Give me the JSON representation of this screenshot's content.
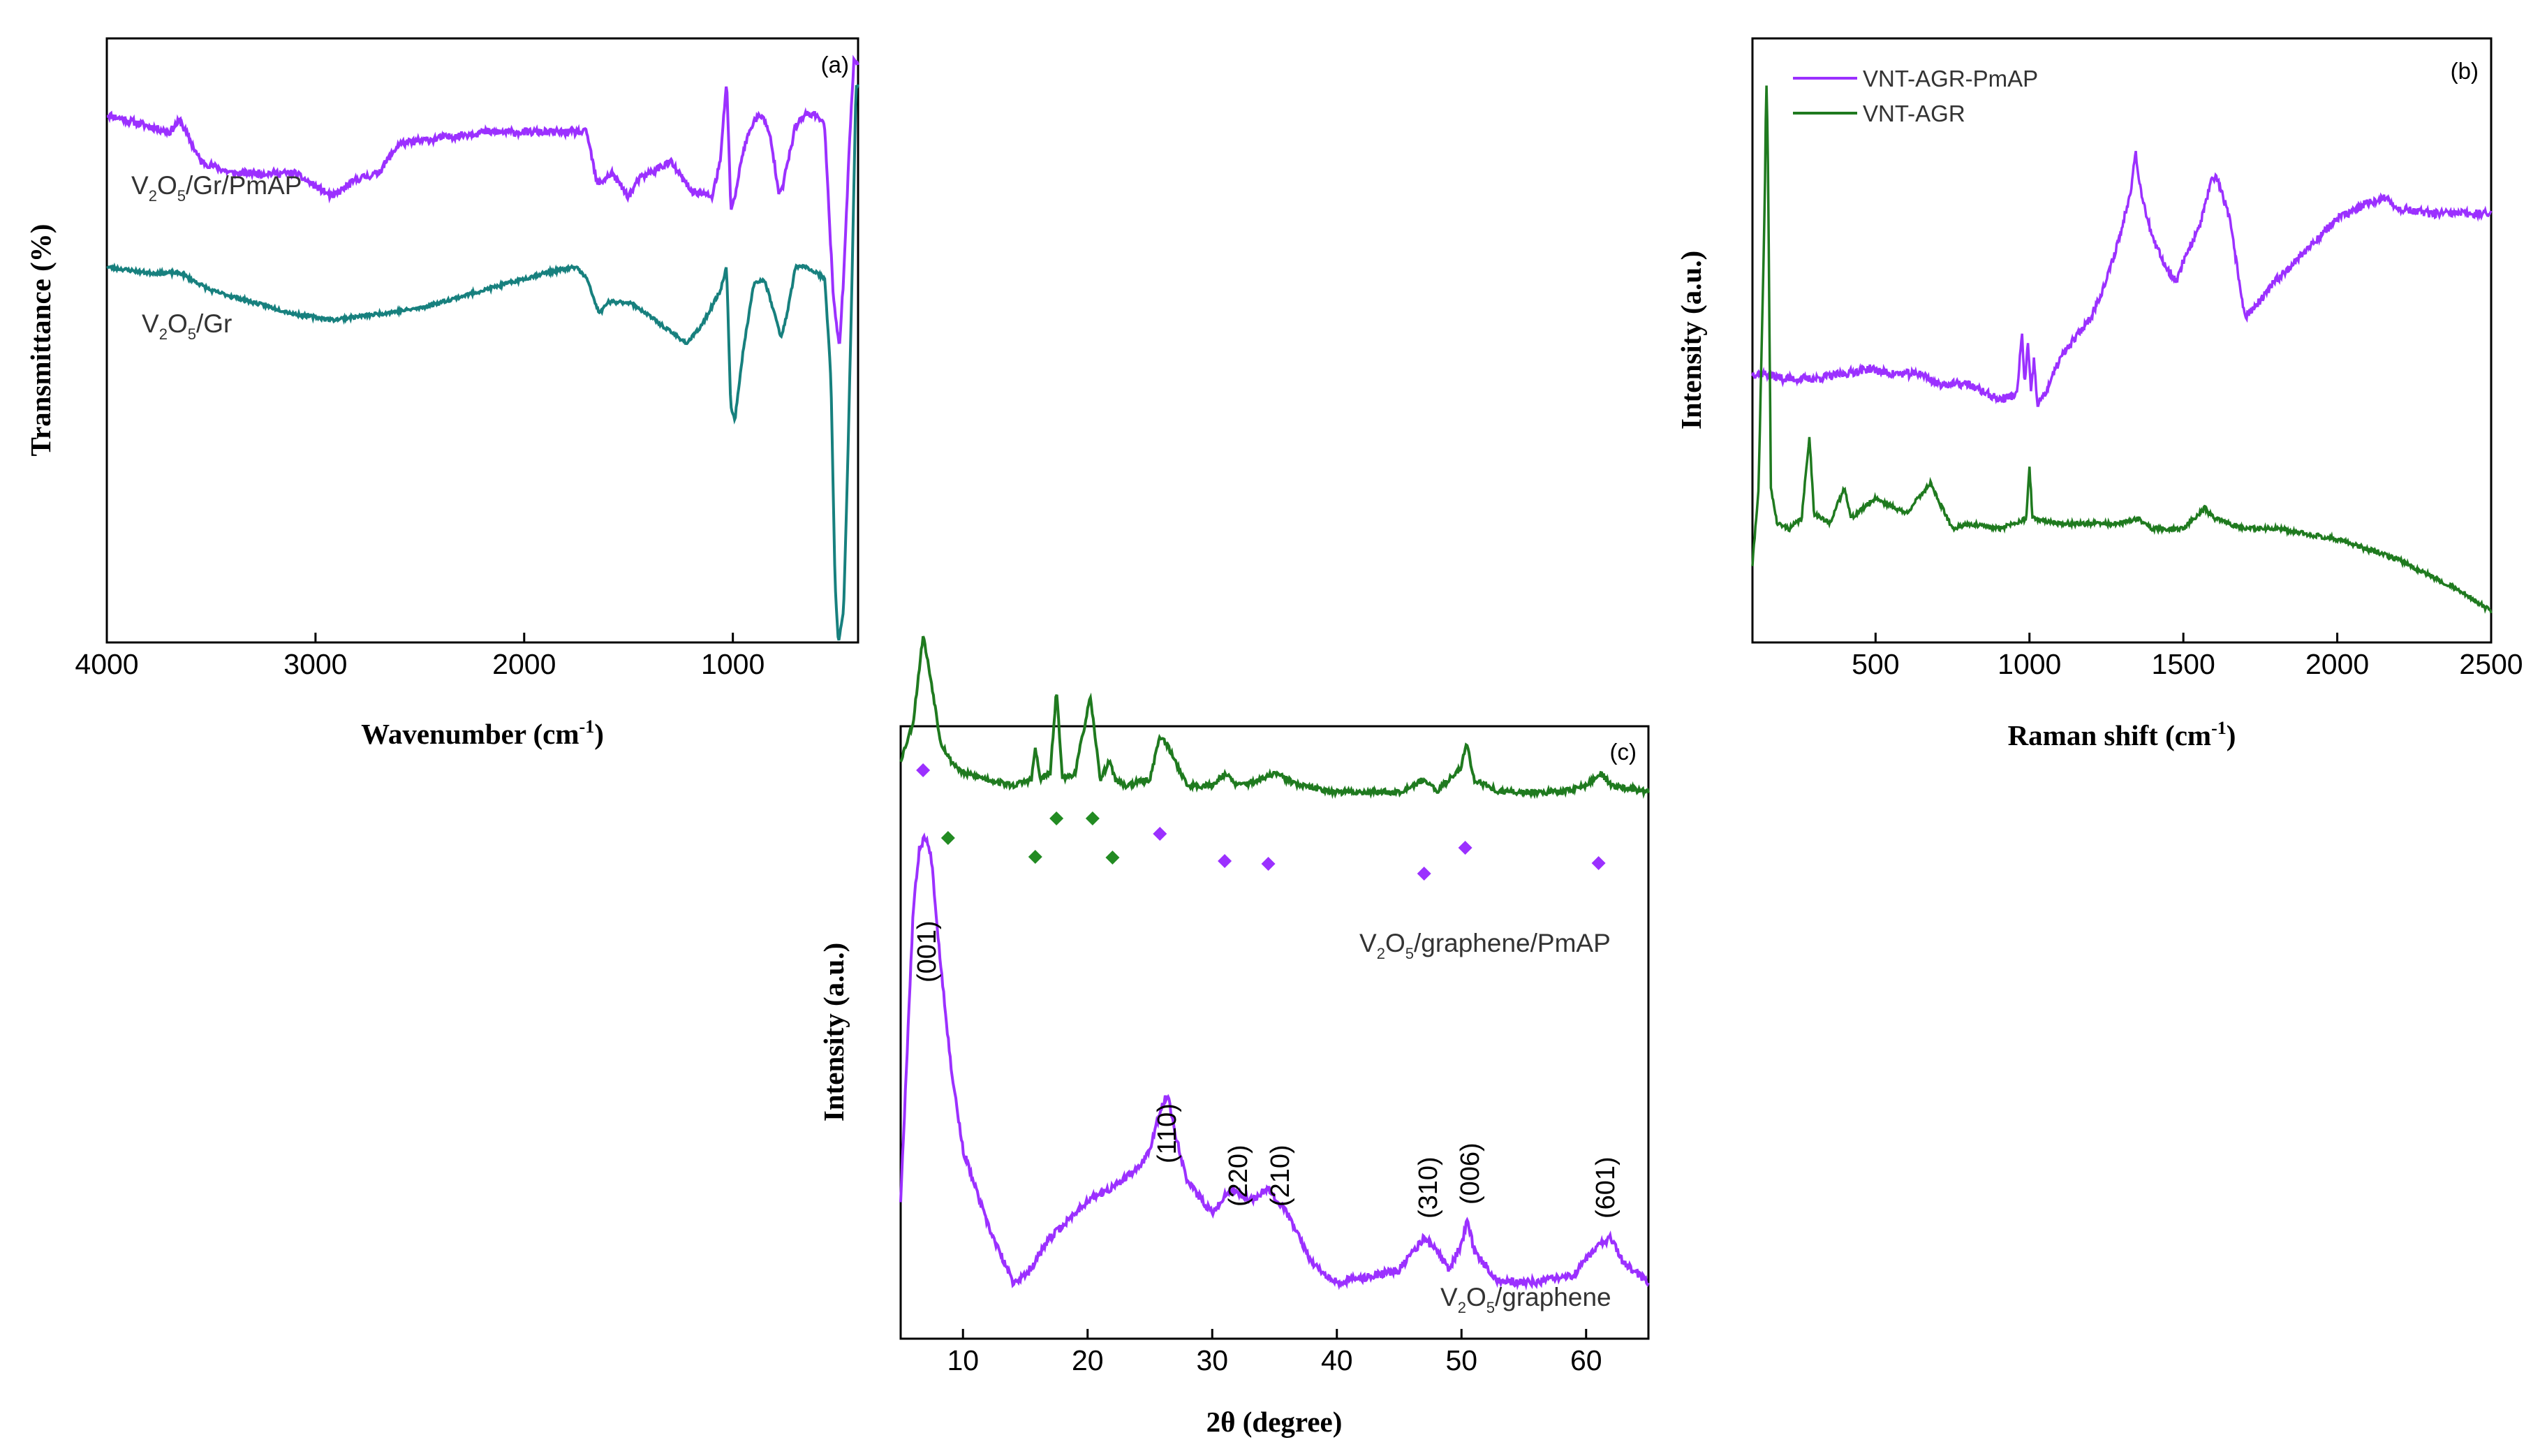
{
  "figure": {
    "panel_a": {
      "label": "(a)",
      "xlabel": "Wavenumber (cm",
      "xlabel_sup": "-1",
      "xlabel_close": ")",
      "ylabel": "Transmittance (%)",
      "xlim": [
        4000,
        400
      ],
      "xticks": [
        "4000",
        "3000",
        "2000",
        "1000"
      ]
    },
    "panel_b": {
      "label": "(b)",
      "xlabel": "Raman shift (cm",
      "xlabel_sup": "-1",
      "xlabel_close": ")",
      "ylabel": "Intensity (a.u.)",
      "xlim": [
        100,
        2500
      ],
      "xticks": [
        "500",
        "1000",
        "1500",
        "2000",
        "2500"
      ],
      "legend": [
        "VNT-AGR-PmAP",
        "VNT-AGR"
      ]
    },
    "panel_c": {
      "label": "(c)",
      "xlabel": "2θ (degree)",
      "ylabel": "Intensity (a.u.)",
      "xlim": [
        5,
        65
      ],
      "xticks": [
        "10",
        "20",
        "30",
        "40",
        "50",
        "60"
      ],
      "hkl": [
        "(001)",
        "(110)",
        "(220)",
        "(210)",
        "(310)",
        "(006)",
        "(601)"
      ]
    }
  },
  "sample_labels": {
    "a_top": [
      "V",
      "2",
      "O",
      "5",
      "/Gr/PmAP"
    ],
    "a_bottom": [
      "V",
      "2",
      "O",
      "5",
      "/Gr"
    ],
    "c_top": [
      "V",
      "2",
      "O",
      "5",
      "/graphene/PmAP"
    ],
    "c_bottom": [
      "V",
      "2",
      "O",
      "5",
      "/graphene"
    ]
  },
  "colors": {
    "purple": "#9b30ff",
    "teal": "#17807e",
    "green": "#1f7a1f",
    "green_marker": "#228b22"
  },
  "chart_data": [
    {
      "type": "line",
      "title": "(a)",
      "xlabel": "Wavenumber (cm-1)",
      "ylabel": "Transmittance (%)",
      "xlim": [
        4000,
        400
      ],
      "series": [
        {
          "name": "V2O5/Gr/PmAP",
          "color": "#9b30ff",
          "x": [
            4000,
            3800,
            3700,
            3650,
            3550,
            3400,
            3100,
            2920,
            2800,
            2700,
            2600,
            2400,
            2200,
            2000,
            1800,
            1700,
            1650,
            1580,
            1500,
            1450,
            1300,
            1200,
            1100,
            1060,
            1030,
            1010,
            990,
            950,
            900,
            860,
            820,
            780,
            760,
            700,
            650,
            600,
            560,
            520,
            490,
            470,
            440,
            420,
            400
          ],
          "y": [
            90,
            88,
            87,
            89,
            82,
            80,
            80,
            76,
            79,
            80,
            85,
            86,
            87,
            87,
            87,
            87,
            78,
            80,
            76,
            79,
            82,
            77,
            76,
            82,
            96,
            74,
            76,
            84,
            89,
            90,
            86,
            77,
            78,
            88,
            90,
            90,
            88,
            60,
            50,
            62,
            86,
            99,
            99
          ]
        },
        {
          "name": "V2O5/Gr",
          "color": "#17807e",
          "x": [
            4000,
            3800,
            3650,
            3500,
            3300,
            3100,
            2920,
            2700,
            2500,
            2300,
            2100,
            1900,
            1750,
            1700,
            1640,
            1600,
            1500,
            1450,
            1300,
            1220,
            1150,
            1060,
            1030,
            1010,
            990,
            950,
            900,
            850,
            800,
            770,
            740,
            700,
            650,
            600,
            560,
            530,
            510,
            495,
            470,
            450,
            430,
            410,
            400
          ],
          "y": [
            64,
            63,
            63,
            60,
            58,
            56,
            55,
            56,
            57,
            59,
            61,
            63,
            64,
            62,
            56,
            58,
            58,
            57,
            53,
            51,
            54,
            60,
            64,
            40,
            38,
            50,
            61,
            62,
            56,
            52,
            56,
            64,
            64,
            63,
            62,
            45,
            10,
            0,
            5,
            30,
            60,
            95,
            95
          ]
        }
      ]
    },
    {
      "type": "line",
      "title": "(b)",
      "xlabel": "Raman shift (cm-1)",
      "ylabel": "Intensity (a.u.)",
      "xlim": [
        100,
        2500
      ],
      "legend": "top-left",
      "series": [
        {
          "name": "VNT-AGR-PmAP",
          "color": "#9b30ff",
          "x": [
            100,
            140,
            200,
            300,
            400,
            480,
            550,
            650,
            700,
            800,
            900,
            960,
            975,
            985,
            995,
            1005,
            1015,
            1025,
            1050,
            1100,
            1200,
            1250,
            1300,
            1330,
            1345,
            1360,
            1400,
            1450,
            1480,
            1500,
            1550,
            1590,
            1610,
            1650,
            1700,
            1750,
            1800,
            1900,
            2000,
            2100,
            2150,
            2200,
            2300,
            2400,
            2500
          ],
          "y": [
            52,
            52,
            51,
            51,
            52,
            53,
            52,
            52,
            50,
            50,
            47,
            48,
            60,
            50,
            58,
            48,
            55,
            46,
            48,
            55,
            63,
            70,
            80,
            88,
            95,
            88,
            78,
            72,
            70,
            74,
            80,
            89,
            90,
            82,
            63,
            66,
            70,
            76,
            82,
            85,
            86,
            84,
            83,
            83,
            83
          ]
        },
        {
          "name": "VNT-AGR",
          "color": "#1f7a1f",
          "x": [
            100,
            120,
            140,
            145,
            150,
            160,
            180,
            220,
            260,
            285,
            300,
            350,
            400,
            420,
            500,
            530,
            600,
            680,
            700,
            750,
            800,
            900,
            990,
            1000,
            1010,
            1100,
            1200,
            1300,
            1350,
            1400,
            1500,
            1570,
            1600,
            1700,
            1800,
            2000,
            2200,
            2400,
            2500
          ],
          "y": [
            15,
            30,
            85,
            110,
            95,
            30,
            23,
            22,
            24,
            40,
            25,
            23,
            30,
            24,
            28,
            27,
            25,
            31,
            28,
            22,
            23,
            22,
            24,
            34,
            24,
            23,
            23,
            23,
            24,
            22,
            22,
            26,
            24,
            22,
            22,
            20,
            16,
            10,
            6
          ]
        }
      ]
    },
    {
      "type": "line",
      "title": "(c)",
      "xlabel": "2θ (degree)",
      "ylabel": "Intensity (a.u.)",
      "xlim": [
        5,
        65
      ],
      "series": [
        {
          "name": "V2O5/graphene/PmAP",
          "color": "#1f7a1f",
          "x": [
            5,
            6,
            6.8,
            7.5,
            8.2,
            9,
            10,
            12,
            14,
            15.5,
            15.8,
            16.2,
            17,
            17.5,
            18,
            19,
            20.2,
            20.6,
            21,
            21.8,
            22.2,
            23,
            25,
            25.8,
            26.5,
            28,
            30,
            31,
            32,
            34,
            35,
            37,
            40,
            45,
            47,
            48,
            50,
            50.4,
            51,
            53,
            55,
            58,
            60,
            61.2,
            62,
            65
          ],
          "y": [
            92,
            98,
            112,
            104,
            95,
            92,
            90,
            89,
            88,
            89,
            94,
            89,
            90,
            103,
            89,
            90,
            102,
            96,
            89,
            92,
            89,
            88,
            89,
            96,
            94,
            88,
            88,
            90,
            88,
            89,
            90,
            88,
            87,
            87,
            89,
            87,
            91,
            95,
            89,
            87,
            87,
            87,
            88,
            90,
            88,
            87
          ]
        },
        {
          "name": "V2O5/graphene",
          "color": "#9b30ff",
          "x": [
            5,
            5.5,
            6,
            6.5,
            7,
            7.5,
            8,
            9,
            10,
            12,
            14,
            15,
            17,
            20,
            22,
            24,
            25,
            25.8,
            26.4,
            27,
            28,
            30,
            31.5,
            33,
            34.5,
            36,
            38,
            40,
            43,
            45,
            47,
            48,
            49,
            50,
            50.5,
            51,
            53,
            56,
            59,
            61,
            62,
            63,
            65
          ],
          "y": [
            22,
            45,
            68,
            78,
            80,
            76,
            64,
            44,
            30,
            18,
            9,
            10,
            16,
            22,
            24,
            27,
            30,
            36,
            39,
            33,
            25,
            20,
            24,
            22,
            24,
            20,
            12,
            9,
            10,
            11,
            16,
            14,
            11,
            15,
            19,
            14,
            9,
            9,
            10,
            15,
            16,
            12,
            9
          ]
        }
      ]
    }
  ]
}
